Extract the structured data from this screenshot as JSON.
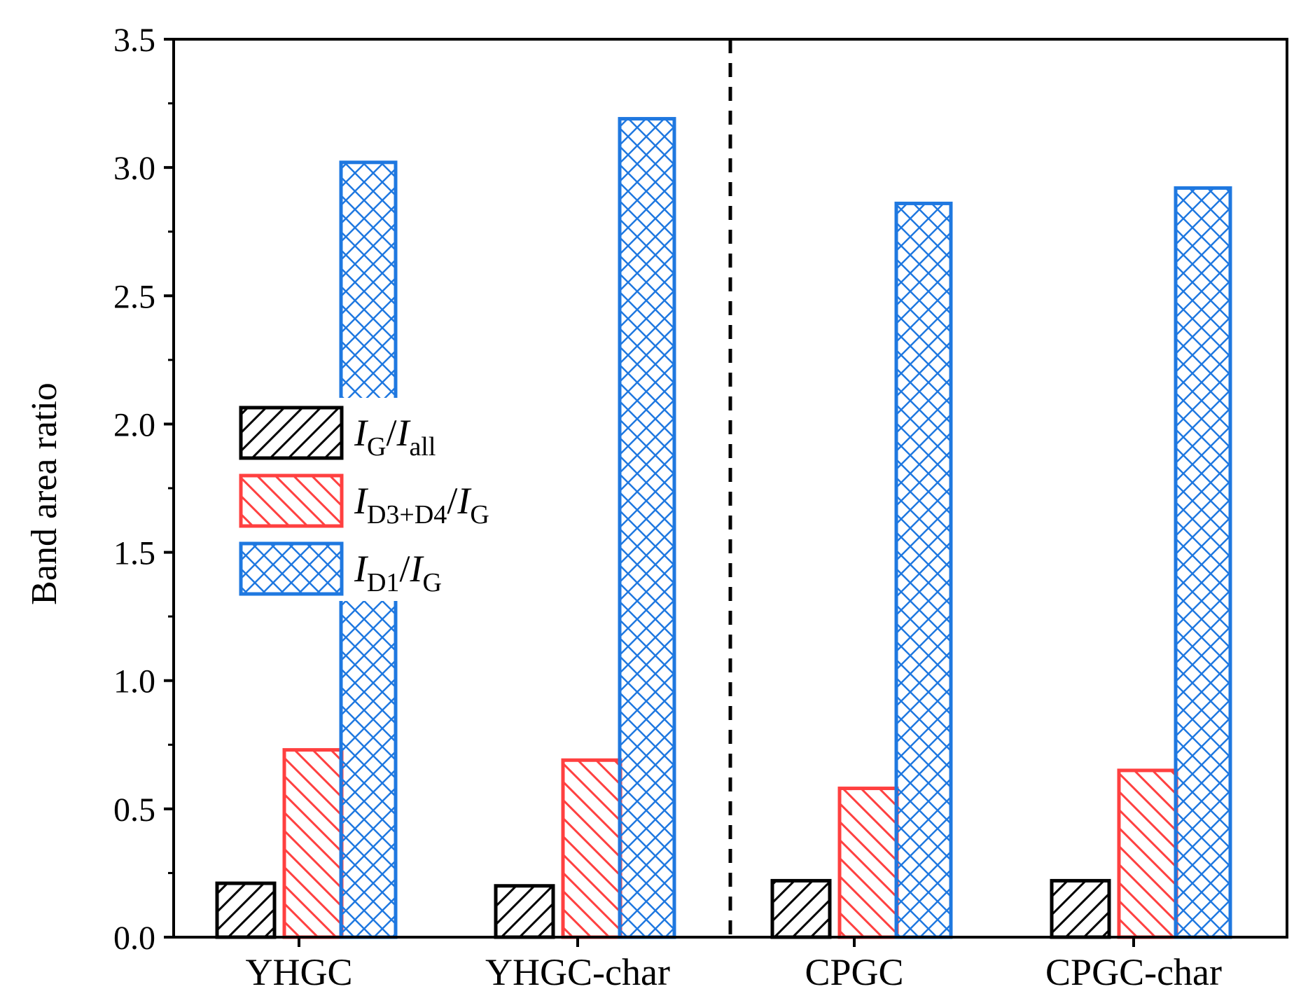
{
  "chart_data": {
    "type": "bar",
    "title": "",
    "xlabel": "",
    "ylabel": "Band area ratio",
    "ylim": [
      0,
      3.5
    ],
    "yticks": [
      "0.0",
      "0.5",
      "1.0",
      "1.5",
      "2.0",
      "2.5",
      "3.0",
      "3.5"
    ],
    "ytick_values": [
      0,
      0.5,
      1.0,
      1.5,
      2.0,
      2.5,
      3.0,
      3.5
    ],
    "categories": [
      "YHGC",
      "YHGC-char",
      "CPGC",
      "CPGC-char"
    ],
    "separator_after_category": 1,
    "legend_position": "left, middle",
    "series": [
      {
        "name": "I_G/I_all",
        "legend": {
          "main1": "I",
          "sub1": "G",
          "slash": "/",
          "main2": "I",
          "sub2": "all"
        },
        "values": [
          0.21,
          0.2,
          0.22,
          0.22
        ],
        "color": "#000000",
        "pattern": "diagonal-up"
      },
      {
        "name": "I_D3+D4/I_G",
        "legend": {
          "main1": "I",
          "sub1": "D3+D4",
          "slash": "/",
          "main2": "I",
          "sub2": "G"
        },
        "values": [
          0.73,
          0.69,
          0.58,
          0.65
        ],
        "color": "#ff4040",
        "pattern": "diagonal-down"
      },
      {
        "name": "I_D1/I_G",
        "legend": {
          "main1": "I",
          "sub1": "D1",
          "slash": "/",
          "main2": "I",
          "sub2": "G"
        },
        "values": [
          3.02,
          3.19,
          2.86,
          2.92
        ],
        "color": "#1f78e0",
        "pattern": "crosshatch"
      }
    ]
  }
}
